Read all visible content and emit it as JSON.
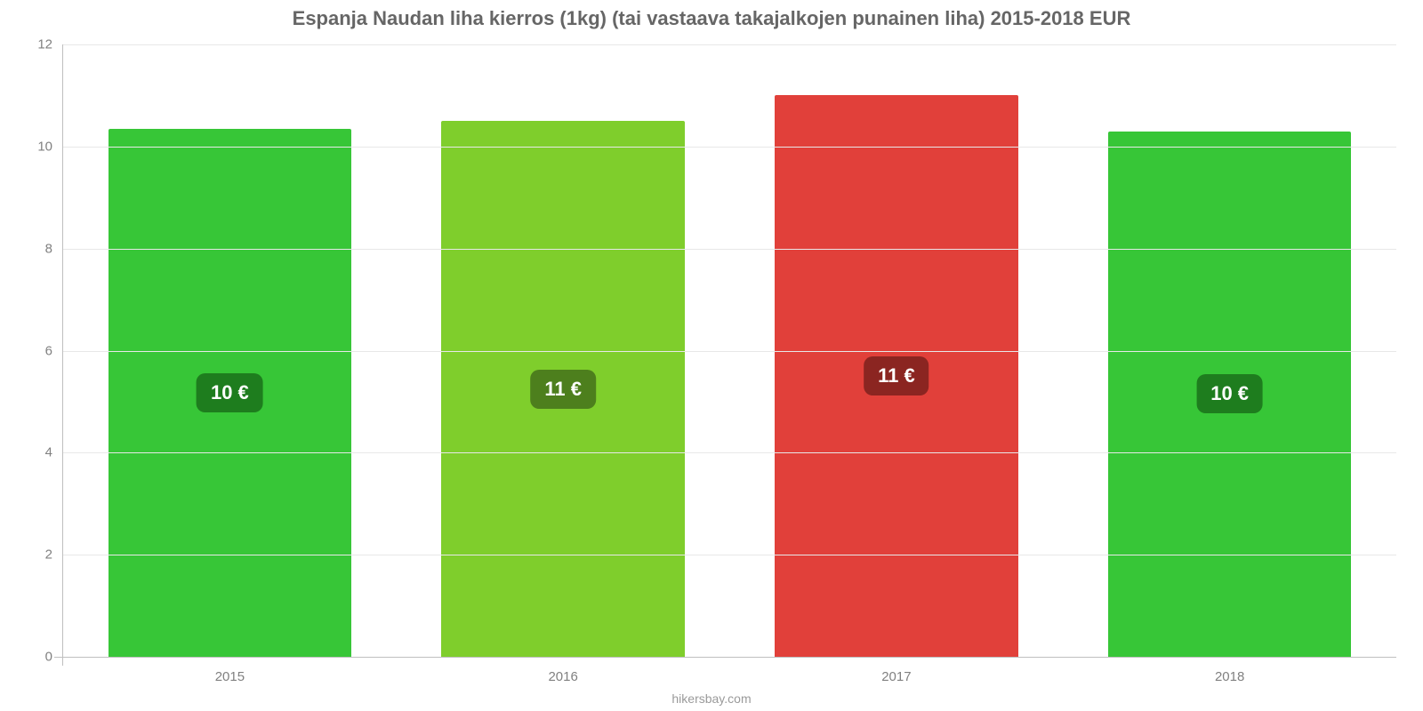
{
  "chart": {
    "type": "bar",
    "title": "Espanja Naudan liha kierros (1kg) (tai vastaava takajalkojen punainen liha) 2015-2018 EUR",
    "title_fontsize": 22,
    "title_color": "#666666",
    "background_color": "#ffffff",
    "grid_color": "#e8e8e8",
    "axis_color": "#bfbfbf",
    "tick_color": "#808080",
    "tick_fontsize": 15,
    "ylim": [
      0,
      12
    ],
    "ytick_step": 2,
    "yticks": [
      0,
      2,
      4,
      6,
      8,
      10,
      12
    ],
    "categories": [
      "2015",
      "2016",
      "2017",
      "2018"
    ],
    "values": [
      10.35,
      10.5,
      11.0,
      10.3
    ],
    "value_labels": [
      "10 €",
      "11 €",
      "11 €",
      "10 €"
    ],
    "bar_colors": [
      "#37c637",
      "#7fce2c",
      "#e1403a",
      "#37c637"
    ],
    "label_bg_colors": [
      "#1e7d1e",
      "#4d7f1d",
      "#8b2521",
      "#1e7d1e"
    ],
    "label_text_color": "#ffffff",
    "label_fontsize": 22,
    "bar_width_ratio": 0.73,
    "footer": "hikersbay.com",
    "footer_color": "#9a9a9a",
    "footer_fontsize": 14
  }
}
